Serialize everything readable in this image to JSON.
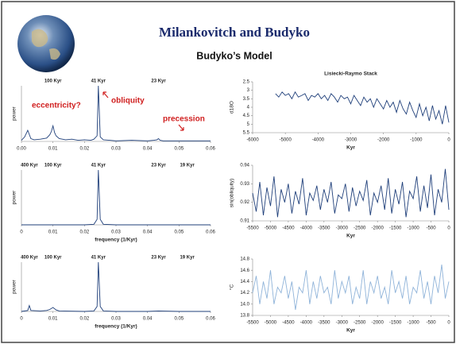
{
  "slide": {
    "title": "Milankovitch and Budyko",
    "subtitle": "Budyko’s Model"
  },
  "chart_data": [
    {
      "type": "line",
      "ylabel": "power",
      "color": "#1f3f7a",
      "annotations": [
        "eccentricity?",
        "obliquity",
        "precession"
      ],
      "top_ticks": [
        {
          "value": 0.01,
          "label": "100 Kyr"
        },
        {
          "value": 0.0244,
          "label": "41 Kyr"
        },
        {
          "value": 0.0435,
          "label": "23 Kyr"
        }
      ],
      "x": [
        0,
        0.001,
        0.002,
        0.003,
        0.004,
        0.006,
        0.008,
        0.009,
        0.0095,
        0.01,
        0.0105,
        0.011,
        0.012,
        0.014,
        0.016,
        0.018,
        0.02,
        0.022,
        0.023,
        0.024,
        0.0244,
        0.025,
        0.026,
        0.028,
        0.03,
        0.035,
        0.04,
        0.042,
        0.043,
        0.0435,
        0.044,
        0.045,
        0.05,
        0.055,
        0.06
      ],
      "values": [
        0.02,
        0.08,
        0.2,
        0.05,
        0.03,
        0.04,
        0.06,
        0.12,
        0.18,
        0.28,
        0.16,
        0.1,
        0.05,
        0.03,
        0.04,
        0.02,
        0.03,
        0.02,
        0.04,
        0.1,
        1.0,
        0.08,
        0.03,
        0.02,
        0.01,
        0.02,
        0.01,
        0.02,
        0.03,
        0.05,
        0.02,
        0.01,
        0.01,
        0.01,
        0.01
      ],
      "xlim": [
        0,
        0.06
      ],
      "ylim": [
        0,
        1
      ],
      "xticks": [
        {
          "value": 0,
          "label": "0.00"
        },
        0.01,
        0.02,
        0.03,
        0.04,
        0.05,
        0.06
      ]
    },
    {
      "type": "line",
      "title": "Lisiecki-Raymo Stack",
      "xlabel": "Kyr",
      "ylabel": "d18O",
      "color": "#1f3f7a",
      "x": [
        -5300,
        -5200,
        -5100,
        -5000,
        -4900,
        -4800,
        -4700,
        -4600,
        -4500,
        -4400,
        -4300,
        -4200,
        -4100,
        -4000,
        -3900,
        -3800,
        -3700,
        -3600,
        -3500,
        -3400,
        -3300,
        -3200,
        -3100,
        -3000,
        -2900,
        -2800,
        -2700,
        -2600,
        -2500,
        -2400,
        -2300,
        -2200,
        -2100,
        -2000,
        -1900,
        -1800,
        -1700,
        -1600,
        -1500,
        -1400,
        -1300,
        -1200,
        -1100,
        -1000,
        -900,
        -800,
        -700,
        -600,
        -500,
        -400,
        -300,
        -200,
        -100,
        0
      ],
      "values": [
        3.2,
        3.4,
        3.1,
        3.3,
        3.2,
        3.5,
        3.1,
        3.4,
        3.3,
        3.2,
        3.6,
        3.3,
        3.4,
        3.2,
        3.5,
        3.3,
        3.6,
        3.2,
        3.4,
        3.7,
        3.3,
        3.5,
        3.4,
        3.8,
        3.3,
        3.6,
        3.9,
        3.4,
        3.7,
        3.5,
        4.0,
        3.5,
        3.8,
        4.1,
        3.6,
        4.0,
        3.7,
        4.3,
        3.6,
        4.1,
        4.4,
        3.7,
        4.2,
        4.6,
        3.8,
        4.5,
        4.0,
        4.8,
        3.9,
        4.7,
        4.2,
        5.0,
        3.9,
        4.9
      ],
      "xlim": [
        -6000,
        0
      ],
      "ylim": [
        5.5,
        2.5
      ],
      "xticks": [
        -6000,
        -5000,
        -4000,
        -3000,
        -2000,
        -1000,
        0
      ],
      "yticks": [
        2.5,
        3,
        3.5,
        4,
        4.5,
        5,
        5.5
      ]
    },
    {
      "type": "line",
      "xlabel": "frequency (1/Kyr)",
      "ylabel": "power",
      "color": "#1f3f7a",
      "top_ticks": [
        {
          "value": 0.0025,
          "label": "400 Kyr"
        },
        {
          "value": 0.01,
          "label": "100 Kyr"
        },
        {
          "value": 0.0244,
          "label": "41 Kyr"
        },
        {
          "value": 0.0435,
          "label": "23 Kyr"
        },
        {
          "value": 0.0526,
          "label": "19 Kyr"
        }
      ],
      "x": [
        0,
        0.01,
        0.02,
        0.023,
        0.024,
        0.0244,
        0.025,
        0.026,
        0.03,
        0.04,
        0.05,
        0.06
      ],
      "values": [
        0,
        0,
        0,
        0.01,
        0.1,
        1,
        0.1,
        0.01,
        0,
        0,
        0,
        0
      ],
      "xlim": [
        0,
        0.06
      ],
      "ylim": [
        0,
        1
      ],
      "xticks": [
        0,
        0.01,
        0.02,
        0.03,
        0.04,
        0.05,
        0.06
      ]
    },
    {
      "type": "line",
      "xlabel": "Kyr",
      "ylabel": "sin(obliquity)",
      "color": "#1f3f7a",
      "x": [
        -5500,
        -5400,
        -5300,
        -5200,
        -5100,
        -5000,
        -4900,
        -4800,
        -4700,
        -4600,
        -4500,
        -4400,
        -4300,
        -4200,
        -4100,
        -4000,
        -3900,
        -3800,
        -3700,
        -3600,
        -3500,
        -3400,
        -3300,
        -3200,
        -3100,
        -3000,
        -2900,
        -2800,
        -2700,
        -2600,
        -2500,
        -2400,
        -2300,
        -2200,
        -2100,
        -2000,
        -1900,
        -1800,
        -1700,
        -1600,
        -1500,
        -1400,
        -1300,
        -1200,
        -1100,
        -1000,
        -900,
        -800,
        -700,
        -600,
        -500,
        -400,
        -300,
        -200,
        -100,
        0
      ],
      "values": [
        0.925,
        0.915,
        0.931,
        0.913,
        0.928,
        0.918,
        0.934,
        0.912,
        0.927,
        0.92,
        0.93,
        0.914,
        0.926,
        0.919,
        0.933,
        0.913,
        0.925,
        0.921,
        0.929,
        0.916,
        0.927,
        0.92,
        0.931,
        0.914,
        0.924,
        0.922,
        0.93,
        0.915,
        0.928,
        0.918,
        0.926,
        0.921,
        0.932,
        0.913,
        0.925,
        0.92,
        0.929,
        0.916,
        0.933,
        0.914,
        0.927,
        0.919,
        0.931,
        0.912,
        0.926,
        0.922,
        0.934,
        0.915,
        0.929,
        0.917,
        0.935,
        0.913,
        0.927,
        0.92,
        0.938,
        0.916
      ],
      "xlim": [
        -5500,
        0
      ],
      "ylim": [
        0.91,
        0.94
      ],
      "xticks": [
        -5500,
        -5000,
        -4500,
        -4000,
        -3500,
        -3000,
        -2500,
        -2000,
        -1500,
        -1000,
        -500,
        0
      ],
      "yticks": [
        0.91,
        0.92,
        0.93,
        0.94
      ]
    },
    {
      "type": "line",
      "xlabel": "frequency (1/Kyr)",
      "ylabel": "power",
      "color": "#1f3f7a",
      "top_ticks": [
        {
          "value": 0.0025,
          "label": "400 Kyr"
        },
        {
          "value": 0.01,
          "label": "100 Kyr"
        },
        {
          "value": 0.0244,
          "label": "41 Kyr"
        },
        {
          "value": 0.0435,
          "label": "23 Kyr"
        },
        {
          "value": 0.0526,
          "label": "19 Kyr"
        }
      ],
      "x": [
        0,
        0.002,
        0.0025,
        0.003,
        0.006,
        0.008,
        0.009,
        0.01,
        0.011,
        0.012,
        0.02,
        0.023,
        0.024,
        0.0244,
        0.025,
        0.026,
        0.03,
        0.04,
        0.0435,
        0.05,
        0.06
      ],
      "values": [
        0,
        0.02,
        0.12,
        0.02,
        0.01,
        0.02,
        0.04,
        0.08,
        0.03,
        0.01,
        0,
        0.01,
        0.1,
        1,
        0.1,
        0.01,
        0,
        0,
        0.01,
        0,
        0
      ],
      "xlim": [
        0,
        0.06
      ],
      "ylim": [
        0,
        1
      ],
      "xticks": [
        0,
        0.01,
        0.02,
        0.03,
        0.04,
        0.05,
        0.06
      ]
    },
    {
      "type": "line",
      "xlabel": "Kyr",
      "ylabel": "°C",
      "color": "#8fb3d9",
      "x": [
        -5500,
        -5400,
        -5300,
        -5200,
        -5100,
        -5000,
        -4900,
        -4800,
        -4700,
        -4600,
        -4500,
        -4400,
        -4300,
        -4200,
        -4100,
        -4000,
        -3900,
        -3800,
        -3700,
        -3600,
        -3500,
        -3400,
        -3300,
        -3200,
        -3100,
        -3000,
        -2900,
        -2800,
        -2700,
        -2600,
        -2500,
        -2400,
        -2300,
        -2200,
        -2100,
        -2000,
        -1900,
        -1800,
        -1700,
        -1600,
        -1500,
        -1400,
        -1300,
        -1200,
        -1100,
        -1000,
        -900,
        -800,
        -700,
        -600,
        -500,
        -400,
        -300,
        -200,
        -100,
        0
      ],
      "values": [
        14.2,
        14.5,
        14.0,
        14.4,
        14.1,
        14.6,
        14.0,
        14.3,
        14.2,
        14.5,
        14.1,
        14.4,
        13.9,
        14.3,
        14.2,
        14.6,
        14.0,
        14.4,
        14.1,
        14.5,
        14.2,
        14.3,
        14.0,
        14.6,
        14.1,
        14.4,
        14.2,
        14.5,
        14.0,
        14.3,
        14.1,
        14.6,
        14.0,
        14.4,
        14.2,
        14.5,
        14.1,
        14.3,
        14.0,
        14.6,
        14.2,
        14.4,
        14.1,
        14.5,
        14.0,
        14.3,
        14.2,
        14.6,
        14.1,
        14.4,
        14.0,
        14.5,
        14.2,
        14.7,
        14.1,
        14.4
      ],
      "xlim": [
        -5500,
        0
      ],
      "ylim": [
        13.8,
        14.8
      ],
      "xticks": [
        -5500,
        -5000,
        -4500,
        -4000,
        -3500,
        -3000,
        -2500,
        -2000,
        -1500,
        -1000,
        -500,
        0
      ],
      "yticks": [
        13.8,
        {
          "value": 14.0,
          "label": "14.0"
        },
        14.2,
        14.4,
        14.6,
        14.8
      ]
    }
  ]
}
